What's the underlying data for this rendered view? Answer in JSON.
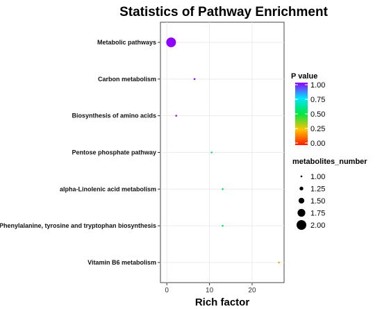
{
  "chart_data": {
    "type": "scatter",
    "title": "Statistics of Pathway Enrichment",
    "xlabel": "Rich factor",
    "ylabel": "",
    "xlim": [
      -1.5,
      27.5
    ],
    "xticks": [
      "0",
      "10",
      "20"
    ],
    "xtick_values": [
      0,
      10,
      20
    ],
    "grid": true,
    "points": [
      {
        "pathway": "Metabolic pathways",
        "rich_factor": 1.0,
        "p_value": 1.0,
        "metabolites_number": 2
      },
      {
        "pathway": "Carbon metabolism",
        "rich_factor": 6.5,
        "p_value": 0.98,
        "metabolites_number": 1
      },
      {
        "pathway": "Biosynthesis of amino acids",
        "rich_factor": 2.2,
        "p_value": 0.99,
        "metabolites_number": 1
      },
      {
        "pathway": "Pentose phosphate pathway",
        "rich_factor": 10.5,
        "p_value": 0.55,
        "metabolites_number": 1
      },
      {
        "pathway": "alpha-Linolenic acid metabolism",
        "rich_factor": 13.1,
        "p_value": 0.52,
        "metabolites_number": 1
      },
      {
        "pathway": "Phenylalanine, tyrosine and tryptophan biosynthesis",
        "rich_factor": 13.1,
        "p_value": 0.52,
        "metabolites_number": 1
      },
      {
        "pathway": "Vitamin B6 metabolism",
        "rich_factor": 26.3,
        "p_value": 0.2,
        "metabolites_number": 1
      }
    ],
    "color_legend": {
      "title": "P value",
      "ticks": [
        "0.00",
        "0.25",
        "0.50",
        "0.75",
        "1.00"
      ],
      "tick_values": [
        0,
        0.25,
        0.5,
        0.75,
        1.0
      ],
      "colors": [
        "#ff1a00",
        "#ffc400",
        "#00e640",
        "#00e6ff",
        "#8f00ff"
      ]
    },
    "size_legend": {
      "title": "metabolites_number",
      "labels": [
        "1.00",
        "1.25",
        "1.50",
        "1.75",
        "2.00"
      ],
      "values": [
        1.0,
        1.25,
        1.5,
        1.75,
        2.0
      ]
    }
  }
}
